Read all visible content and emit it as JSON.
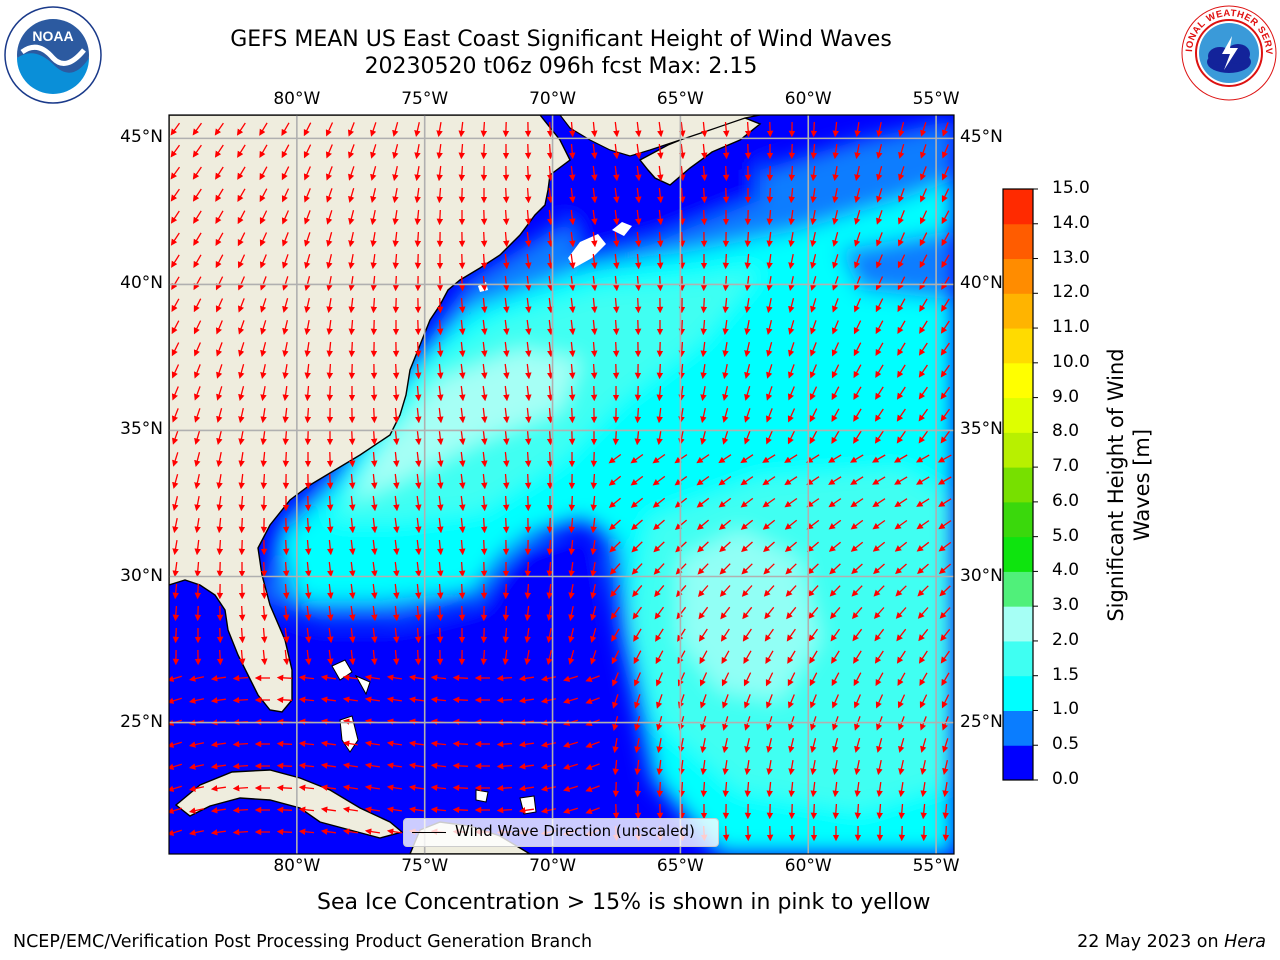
{
  "header": {
    "title_line1": "GEFS MEAN US East Coast Significant Height of Wind Waves",
    "title_line2": "20230520 t06z 096h fcst   Max: 2.15"
  },
  "logos": {
    "left": {
      "name": "noaa-logo",
      "text": "NOAA",
      "ring_text": "NATIONAL OCEANIC AND ATMOSPHERIC ADMINISTRATION · U.S. DEPARTMENT OF COMMERCE"
    },
    "right": {
      "name": "nws-logo",
      "ring_text": "NATIONAL WEATHER SERVICE"
    }
  },
  "map": {
    "lon_labels": [
      "80°W",
      "75°W",
      "70°W",
      "65°W",
      "60°W",
      "55°W"
    ],
    "lat_labels": [
      "45°N",
      "40°N",
      "35°N",
      "30°N",
      "25°N"
    ],
    "lon_values": [
      -80,
      -75,
      -70,
      -65,
      -60,
      -55
    ],
    "lat_values": [
      45,
      40,
      35,
      30,
      25
    ],
    "extent": {
      "lon_min": -85,
      "lon_max": -54.3,
      "lat_min": 20.5,
      "lat_max": 45.8
    },
    "land_color": "#efedde",
    "grid_color": "#b0b0b0",
    "arrow_color": "#ff0000",
    "legend_label": "Wind Wave Direction (unscaled)"
  },
  "colorbar": {
    "label": "Significant Height of Wind Waves [m]",
    "ticks": [
      "0.0",
      "0.5",
      "1.0",
      "1.5",
      "2.0",
      "3.0",
      "4.0",
      "5.0",
      "6.0",
      "7.0",
      "8.0",
      "9.0",
      "10.0",
      "11.0",
      "12.0",
      "13.0",
      "14.0",
      "15.0"
    ],
    "colors": [
      "#0000ff",
      "#0a7dff",
      "#00ffff",
      "#3ffff2",
      "#a6fff5",
      "#50f07a",
      "#0ee40e",
      "#3ad80c",
      "#77e000",
      "#b8f000",
      "#deff00",
      "#ffff00",
      "#ffdb00",
      "#ffb400",
      "#ff8c00",
      "#ff5c00",
      "#ff2a00"
    ]
  },
  "notes": {
    "sea_ice": "Sea Ice Concentration > 15% is shown in pink to yellow"
  },
  "footer": {
    "left": "NCEP/EMC/Verification Post Processing Product Generation Branch",
    "date": "22 May 2023 on ",
    "machine": "Hera"
  }
}
